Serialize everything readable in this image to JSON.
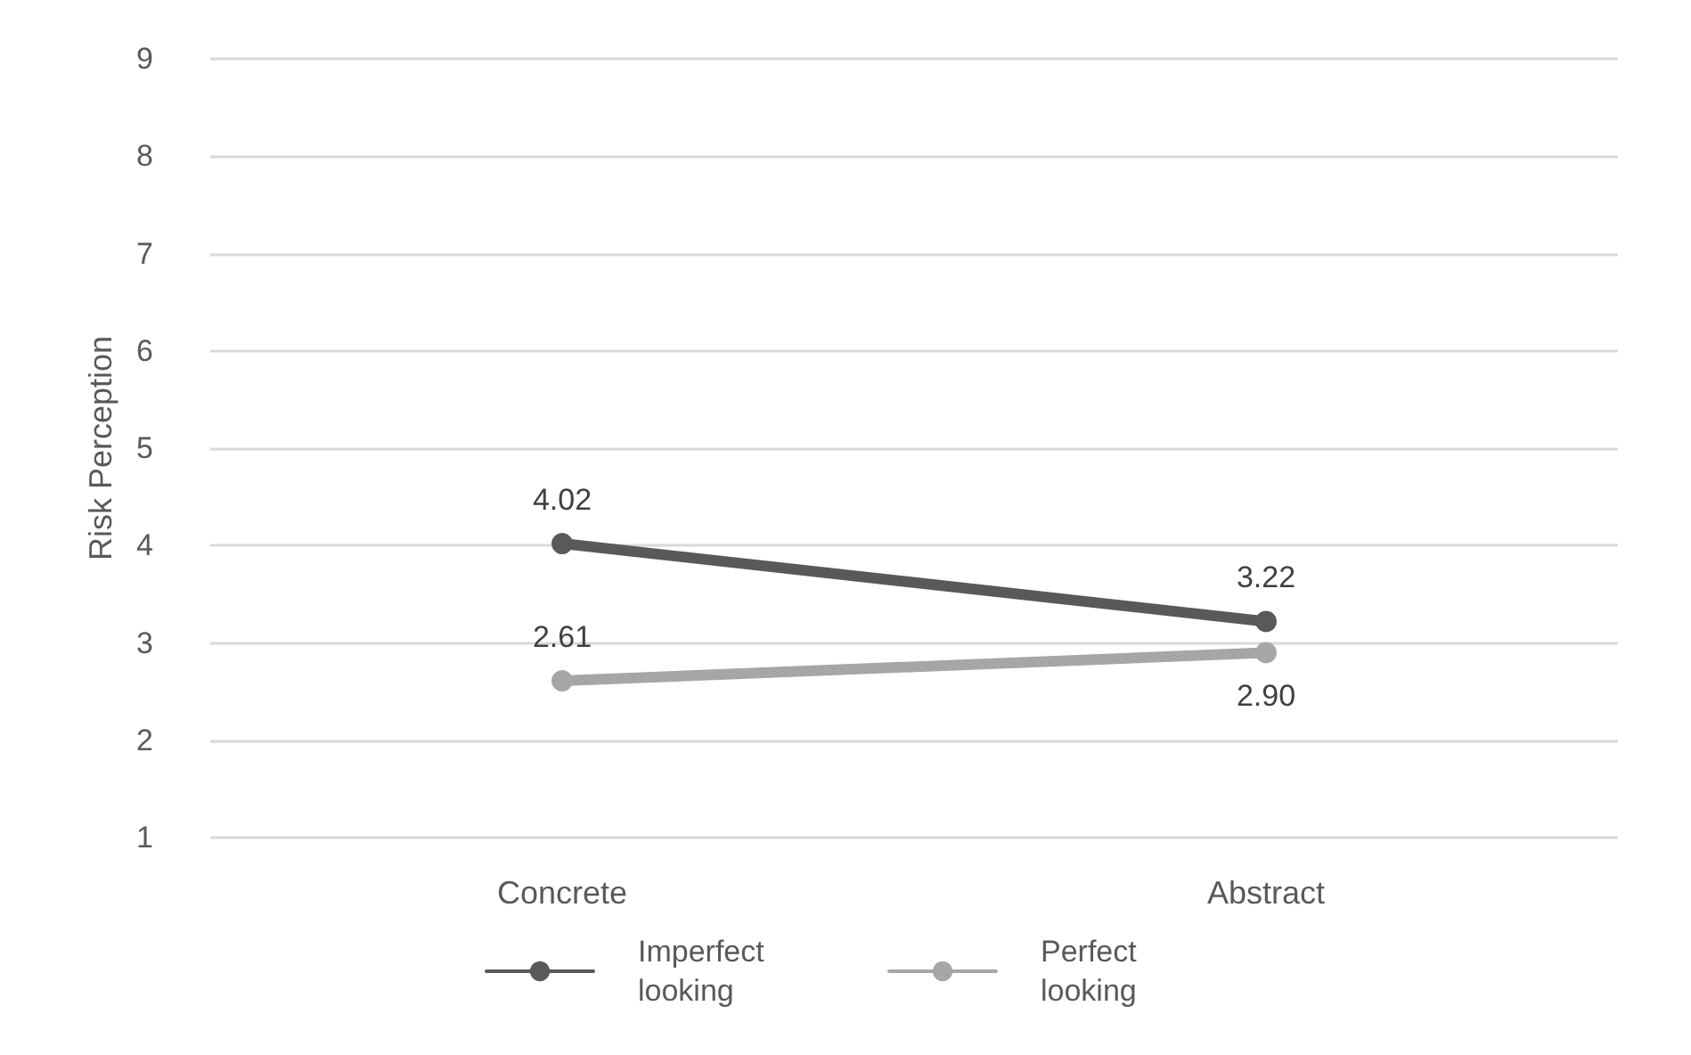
{
  "chart_data": {
    "type": "line",
    "ylabel": "Risk Perception",
    "categories": [
      "Concrete",
      "Abstract"
    ],
    "series": [
      {
        "name": "Imperfect looking",
        "color": "#595959",
        "values": [
          4.02,
          3.22
        ],
        "value_labels": [
          "4.02",
          "3.22"
        ]
      },
      {
        "name": "Perfect looking",
        "color": "#a6a6a6",
        "values": [
          2.61,
          2.9
        ],
        "value_labels": [
          "2.61",
          "2.90"
        ]
      }
    ],
    "ylim": [
      1,
      9
    ],
    "yticks": [
      1,
      2,
      3,
      4,
      5,
      6,
      7,
      8,
      9
    ],
    "grid": "y",
    "legend": "bottom",
    "marker": "circle",
    "line_style": "solid"
  }
}
